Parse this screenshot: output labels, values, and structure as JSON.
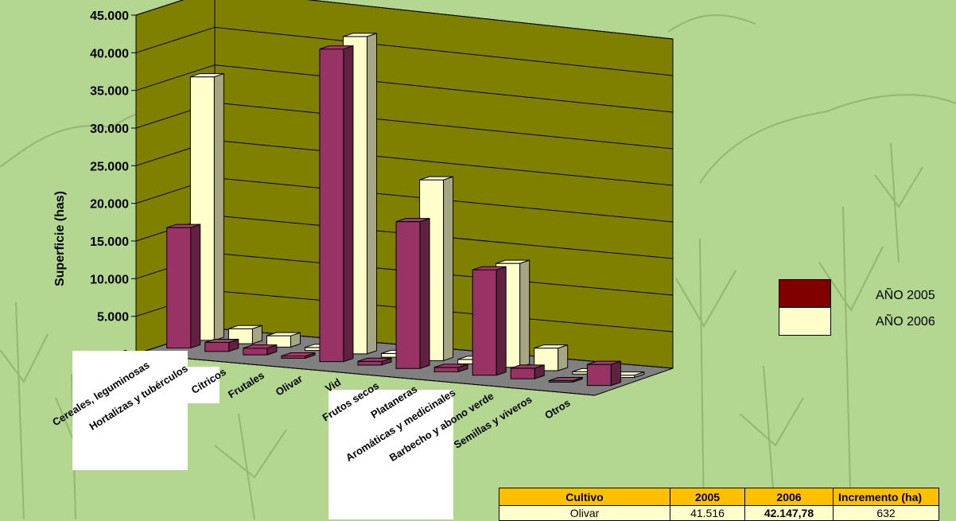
{
  "colors": {
    "page_background": "#b3d690",
    "plot_wall": "#808000",
    "plot_floor": "#808080",
    "series_2005": "#993366",
    "series_2006": "#ffffcc",
    "legend_2005": "#800000",
    "legend_2006": "#ffffcc",
    "table_header": "#ffc000",
    "table_row": "#ffffcc"
  },
  "chart_data": {
    "type": "bar",
    "variant": "3d-clustered-column",
    "title": "",
    "ylabel": "Superficie (has)",
    "xlabel": "",
    "ylim": [
      0,
      45000
    ],
    "yticks": [
      "0",
      "5.000",
      "10.000",
      "15.000",
      "20.000",
      "25.000",
      "30.000",
      "35.000",
      "40.000",
      "45.000"
    ],
    "ytick_values": [
      0,
      5000,
      10000,
      15000,
      20000,
      25000,
      30000,
      35000,
      40000,
      45000
    ],
    "grid": true,
    "legend_position": "right",
    "categories": [
      "Cereales, leguminosas",
      "Hortalizas y tubérculos",
      "Cítricos",
      "Frutales",
      "Olivar",
      "Vid",
      "Frutos secos",
      "Plataneras",
      "Aromáticas y medicinales",
      "Barbecho y abono verde",
      "Semillas y viveros",
      "Otros"
    ],
    "series": [
      {
        "name": "AÑO 2005",
        "values": [
          16000,
          1200,
          900,
          300,
          41516,
          500,
          19500,
          600,
          14000,
          1400,
          200,
          2800
        ]
      },
      {
        "name": "AÑO 2006",
        "values": [
          35000,
          2000,
          1500,
          400,
          42148,
          500,
          24000,
          600,
          13800,
          3000,
          300,
          300
        ]
      }
    ]
  },
  "legend": {
    "items": [
      {
        "label": "AÑO 2005"
      },
      {
        "label": "AÑO 2006"
      }
    ]
  },
  "table": {
    "headers": [
      "Cultivo",
      "2005",
      "2006",
      "Incremento (ha)"
    ],
    "rows": [
      [
        "Olivar",
        "41.516",
        "42.147,78",
        "632"
      ]
    ]
  }
}
